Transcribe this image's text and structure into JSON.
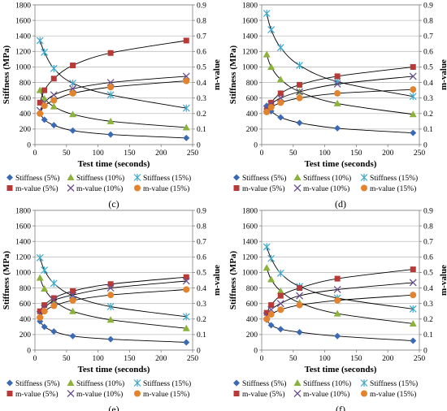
{
  "chart_data": [
    {
      "label": "(c)",
      "type": "scatter",
      "xlabel": "Test time (seconds)",
      "ylabel": "Stiffness (MPa)",
      "y2label": "m-value",
      "xlim": [
        0,
        250
      ],
      "xticks": [
        0,
        50,
        100,
        150,
        200,
        250
      ],
      "ylim": [
        0,
        1800
      ],
      "yticks": [
        0,
        200,
        400,
        600,
        800,
        1000,
        1200,
        1400,
        1600,
        1800
      ],
      "y2lim": [
        0,
        0.9
      ],
      "y2ticks": [
        "0",
        "0.1",
        "0.2",
        "0.3",
        "0.4",
        "0.5",
        "0.6",
        "0.7",
        "0.8",
        "0.9"
      ],
      "legend_position": "bottom",
      "x": [
        8,
        15,
        30,
        60,
        120,
        240
      ],
      "series": [
        {
          "name": "Stiffness (5%)",
          "axis": "left",
          "marker": "diamond",
          "color": "#3b6ab5",
          "values": [
            410,
            320,
            250,
            180,
            130,
            85
          ]
        },
        {
          "name": "Stiffness (10%)",
          "axis": "left",
          "marker": "triangle",
          "color": "#8bb23a",
          "values": [
            700,
            590,
            490,
            390,
            300,
            220
          ]
        },
        {
          "name": "Stiffness (15%)",
          "axis": "left",
          "marker": "x",
          "color": "#3fa7c8",
          "values": [
            1340,
            1190,
            980,
            790,
            640,
            470
          ]
        },
        {
          "name": "m-value (5%)",
          "axis": "right",
          "marker": "square",
          "color": "#b83a37",
          "values": [
            0.27,
            0.35,
            0.425,
            0.51,
            0.59,
            0.67
          ]
        },
        {
          "name": "m-value (10%)",
          "axis": "right",
          "marker": "cross",
          "color": "#6a4f8f",
          "values": [
            0.22,
            0.27,
            0.32,
            0.36,
            0.4,
            0.44
          ]
        },
        {
          "name": "m-value (15%)",
          "axis": "right",
          "marker": "circle",
          "color": "#e4832e",
          "values": [
            0.2,
            0.25,
            0.285,
            0.33,
            0.37,
            0.41
          ]
        }
      ]
    },
    {
      "label": "(d)",
      "type": "scatter",
      "xlabel": "Test time (seconds)",
      "ylabel": "Stiffness (MPa)",
      "y2label": "m-value",
      "xlim": [
        0,
        250
      ],
      "xticks": [
        0,
        50,
        100,
        150,
        200,
        250
      ],
      "ylim": [
        0,
        1800
      ],
      "yticks": [
        0,
        200,
        400,
        600,
        800,
        1000,
        1200,
        1400,
        1600,
        1800
      ],
      "y2lim": [
        0,
        0.9
      ],
      "y2ticks": [
        "0",
        "0.1",
        "0.2",
        "0.3",
        "0.4",
        "0.5",
        "0.6",
        "0.7",
        "0.8",
        "0.9"
      ],
      "legend_position": "bottom",
      "x": [
        8,
        15,
        30,
        60,
        120,
        240
      ],
      "series": [
        {
          "name": "Stiffness (5%)",
          "axis": "left",
          "marker": "diamond",
          "color": "#3b6ab5",
          "values": [
            500,
            430,
            350,
            280,
            210,
            150
          ]
        },
        {
          "name": "Stiffness (10%)",
          "axis": "left",
          "marker": "triangle",
          "color": "#8bb23a",
          "values": [
            1160,
            1000,
            840,
            680,
            530,
            390
          ]
        },
        {
          "name": "Stiffness (15%)",
          "axis": "left",
          "marker": "x",
          "color": "#3fa7c8",
          "values": [
            1690,
            1480,
            1250,
            1020,
            810,
            620
          ]
        },
        {
          "name": "m-value (5%)",
          "axis": "right",
          "marker": "square",
          "color": "#b83a37",
          "values": [
            0.22,
            0.27,
            0.33,
            0.385,
            0.44,
            0.5
          ]
        },
        {
          "name": "m-value (10%)",
          "axis": "right",
          "marker": "cross",
          "color": "#6a4f8f",
          "values": [
            0.23,
            0.26,
            0.3,
            0.34,
            0.39,
            0.44
          ]
        },
        {
          "name": "m-value (15%)",
          "axis": "right",
          "marker": "circle",
          "color": "#e4832e",
          "values": [
            0.21,
            0.24,
            0.27,
            0.3,
            0.33,
            0.355
          ]
        }
      ]
    },
    {
      "label": "(e)",
      "type": "scatter",
      "xlabel": "Test time (seconds)",
      "ylabel": "Stiffness (MPa)",
      "y2label": "m-value",
      "xlim": [
        0,
        250
      ],
      "xticks": [
        0,
        50,
        100,
        150,
        200,
        250
      ],
      "ylim": [
        0,
        1800
      ],
      "yticks": [
        0,
        200,
        400,
        600,
        800,
        1000,
        1200,
        1400,
        1600,
        1800
      ],
      "y2lim": [
        0,
        0.9
      ],
      "y2ticks": [
        "0",
        "0.1",
        "0.2",
        "0.3",
        "0.4",
        "0.5",
        "0.6",
        "0.7",
        "0.8",
        "0.9"
      ],
      "legend_position": "bottom",
      "x": [
        8,
        15,
        30,
        60,
        120,
        240
      ],
      "series": [
        {
          "name": "Stiffness (5%)",
          "axis": "left",
          "marker": "diamond",
          "color": "#3b6ab5",
          "values": [
            370,
            300,
            240,
            180,
            140,
            100
          ]
        },
        {
          "name": "Stiffness (10%)",
          "axis": "left",
          "marker": "triangle",
          "color": "#8bb23a",
          "values": [
            930,
            790,
            640,
            500,
            390,
            280
          ]
        },
        {
          "name": "Stiffness (15%)",
          "axis": "left",
          "marker": "x",
          "color": "#3fa7c8",
          "values": [
            1190,
            1030,
            860,
            700,
            560,
            430
          ]
        },
        {
          "name": "m-value (5%)",
          "axis": "right",
          "marker": "square",
          "color": "#b83a37",
          "values": [
            0.25,
            0.29,
            0.335,
            0.38,
            0.425,
            0.47
          ]
        },
        {
          "name": "m-value (10%)",
          "axis": "right",
          "marker": "cross",
          "color": "#6a4f8f",
          "values": [
            0.23,
            0.27,
            0.32,
            0.355,
            0.4,
            0.445
          ]
        },
        {
          "name": "m-value (15%)",
          "axis": "right",
          "marker": "circle",
          "color": "#e4832e",
          "values": [
            0.21,
            0.25,
            0.285,
            0.32,
            0.355,
            0.39
          ]
        }
      ]
    },
    {
      "label": "(f)",
      "type": "scatter",
      "xlabel": "Test time (seconds)",
      "ylabel": "Stiffness (MPa)",
      "y2label": "m-value",
      "xlim": [
        0,
        250
      ],
      "xticks": [
        0,
        50,
        100,
        150,
        200,
        250
      ],
      "ylim": [
        0,
        1800
      ],
      "yticks": [
        0,
        200,
        400,
        600,
        800,
        1000,
        1200,
        1400,
        1600,
        1800
      ],
      "y2lim": [
        0,
        0.9
      ],
      "y2ticks": [
        "0",
        "0.1",
        "0.2",
        "0.3",
        "0.4",
        "0.5",
        "0.6",
        "0.7",
        "0.8",
        "0.9"
      ],
      "legend_position": "bottom",
      "x": [
        8,
        15,
        30,
        60,
        120,
        240
      ],
      "series": [
        {
          "name": "Stiffness (5%)",
          "axis": "left",
          "marker": "diamond",
          "color": "#3b6ab5",
          "values": [
            390,
            320,
            270,
            230,
            180,
            120
          ]
        },
        {
          "name": "Stiffness (10%)",
          "axis": "left",
          "marker": "triangle",
          "color": "#8bb23a",
          "values": [
            1060,
            910,
            760,
            610,
            470,
            340
          ]
        },
        {
          "name": "Stiffness (15%)",
          "axis": "left",
          "marker": "x",
          "color": "#3fa7c8",
          "values": [
            1330,
            1180,
            990,
            820,
            670,
            530
          ]
        },
        {
          "name": "m-value (5%)",
          "axis": "right",
          "marker": "square",
          "color": "#b83a37",
          "values": [
            0.24,
            0.29,
            0.35,
            0.4,
            0.46,
            0.52
          ]
        },
        {
          "name": "m-value (10%)",
          "axis": "right",
          "marker": "cross",
          "color": "#6a4f8f",
          "values": [
            0.22,
            0.26,
            0.3,
            0.35,
            0.39,
            0.435
          ]
        },
        {
          "name": "m-value (15%)",
          "axis": "right",
          "marker": "circle",
          "color": "#e4832e",
          "values": [
            0.2,
            0.23,
            0.26,
            0.29,
            0.32,
            0.355
          ]
        }
      ]
    }
  ]
}
